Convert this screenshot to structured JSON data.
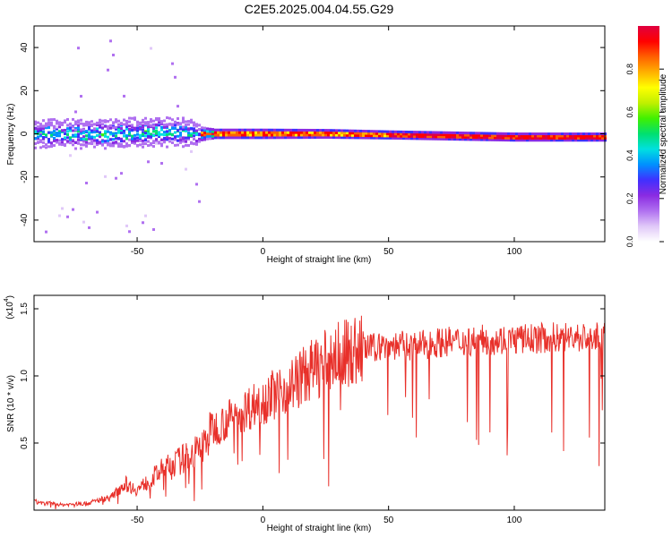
{
  "title": "C2E5.2025.004.04.55.G29",
  "colors": {
    "snr_line": "#e8302a",
    "colormap": [
      "#ffffff",
      "#e0c8f8",
      "#b070f0",
      "#8a2be2",
      "#4030ff",
      "#0090ff",
      "#00e0e0",
      "#00e070",
      "#40f000",
      "#c0f000",
      "#ffff00",
      "#ffb000",
      "#ff6000",
      "#ff0000",
      "#e00040"
    ]
  },
  "chart_data": [
    {
      "type": "heatmap",
      "xlabel": "Height of straight line (km)",
      "ylabel": "Frequency (Hz)",
      "xlim": [
        -91,
        136
      ],
      "ylim": [
        -50,
        50
      ],
      "xticks": [
        -50,
        0,
        50,
        100
      ],
      "yticks": [
        -40,
        -20,
        0,
        20,
        40
      ],
      "colorbar": {
        "label": "Normalized spectral amplitude",
        "range": [
          0,
          1
        ],
        "ticks": [
          "0.0",
          "0.2",
          "0.4",
          "0.6",
          "0.8"
        ],
        "tick_values": [
          0,
          0.2,
          0.4,
          0.6,
          0.8
        ]
      },
      "ridge": [
        {
          "x": -90,
          "f": 0
        },
        {
          "x": -70,
          "f": 0
        },
        {
          "x": -50,
          "f": 0.5
        },
        {
          "x": -35,
          "f": 1
        },
        {
          "x": -25,
          "f": 0
        },
        {
          "x": 0,
          "f": 0
        },
        {
          "x": 25,
          "f": 0
        },
        {
          "x": 50,
          "f": -0.5
        },
        {
          "x": 75,
          "f": -1
        },
        {
          "x": 100,
          "f": -1.5
        },
        {
          "x": 136,
          "f": -1.5
        }
      ],
      "band_halfwidth": [
        {
          "x": -90,
          "hz": 5
        },
        {
          "x": -50,
          "hz": 6
        },
        {
          "x": -30,
          "hz": 5
        },
        {
          "x": -20,
          "hz": 3
        },
        {
          "x": 0,
          "hz": 3
        },
        {
          "x": 50,
          "hz": 2.5
        },
        {
          "x": 100,
          "hz": 2.5
        },
        {
          "x": 136,
          "hz": 2.5
        }
      ]
    },
    {
      "type": "line",
      "xlabel": "Height of straight line (km)",
      "ylabel": "SNR (10 * v/v)",
      "yscale_label": "(x10",
      "yscale_exp": "4",
      "xlim": [
        -91,
        136
      ],
      "ylim": [
        0,
        1.6
      ],
      "xticks": [
        -50,
        0,
        50,
        100
      ],
      "yticks": [
        0.5,
        1.0,
        1.5
      ],
      "ytick_labels": [
        "0.5",
        "1.0",
        "1.5"
      ],
      "series": [
        {
          "x": [
            -90,
            -80,
            -70,
            -60,
            -55,
            -50,
            -40,
            -30,
            -25,
            -20,
            -10,
            0,
            10,
            20,
            30,
            40,
            50,
            60,
            70,
            80,
            90,
            100,
            110,
            120,
            136
          ],
          "y": [
            0.06,
            0.04,
            0.05,
            0.1,
            0.2,
            0.15,
            0.3,
            0.4,
            0.45,
            0.6,
            0.72,
            0.82,
            0.92,
            1.05,
            1.15,
            1.2,
            1.23,
            1.22,
            1.25,
            1.26,
            1.27,
            1.27,
            1.28,
            1.29,
            1.28
          ]
        }
      ]
    }
  ]
}
